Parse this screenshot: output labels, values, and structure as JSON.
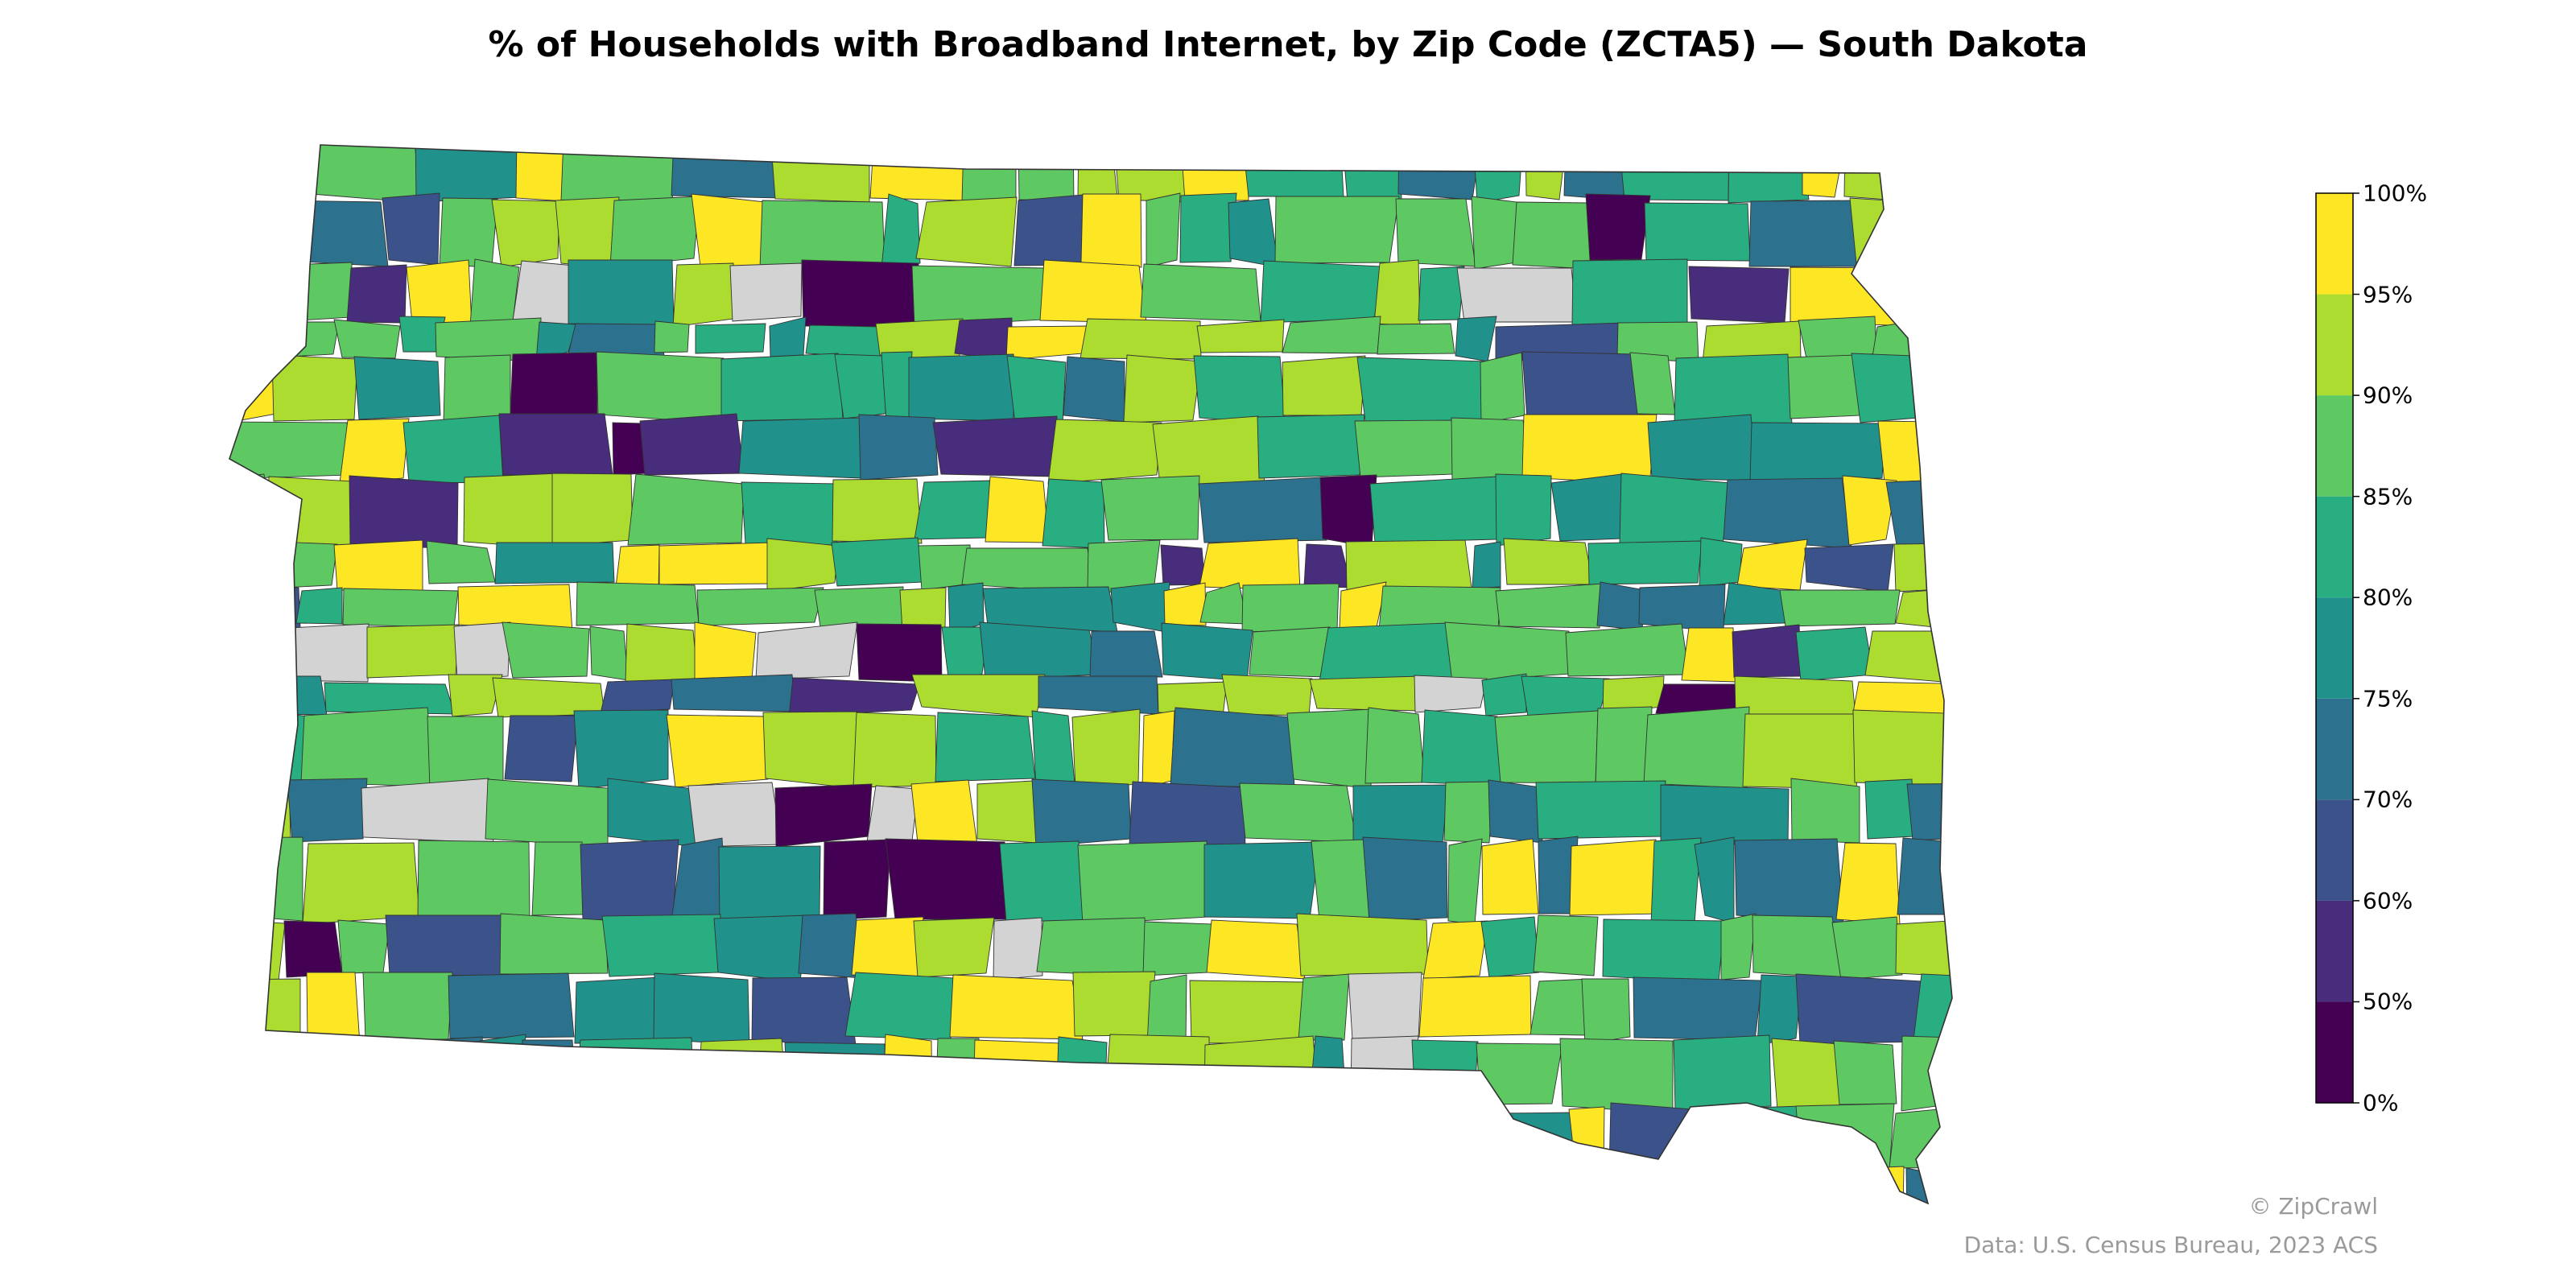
{
  "title": "% of Households with Broadband Internet, by Zip Code (ZCTA5) — South Dakota",
  "legend": {
    "ticks": [
      "0%",
      "50%",
      "60%",
      "70%",
      "75%",
      "80%",
      "85%",
      "90%",
      "95%",
      "100%"
    ],
    "bins": [
      {
        "range": "0–50%",
        "color": "#440154"
      },
      {
        "range": "50–60%",
        "color": "#472d7b"
      },
      {
        "range": "60–70%",
        "color": "#3b528b"
      },
      {
        "range": "70–75%",
        "color": "#2c728e"
      },
      {
        "range": "75–80%",
        "color": "#21918c"
      },
      {
        "range": "80–85%",
        "color": "#28ae80"
      },
      {
        "range": "85–90%",
        "color": "#5ec962"
      },
      {
        "range": "90–95%",
        "color": "#addc30"
      },
      {
        "range": "95–100%",
        "color": "#fde725"
      }
    ],
    "no_data_color": "#d3d3d3"
  },
  "credits": {
    "copyright": "© ZipCrawl",
    "source": "Data: U.S. Census Bureau, 2023 ACS"
  },
  "map": {
    "region": "South Dakota",
    "style": "choropleth",
    "border_color": "#333333"
  }
}
